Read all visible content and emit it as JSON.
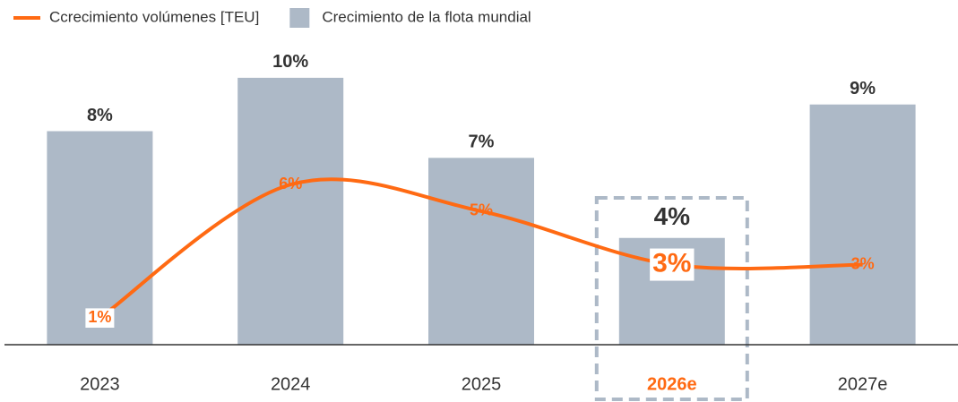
{
  "chart_data": {
    "type": "combo",
    "categories": [
      "2023",
      "2024",
      "2025",
      "2026e",
      "2027e"
    ],
    "series": [
      {
        "name": "Ccrecimiento volúmenes [TEU]",
        "type": "line",
        "color": "#ff6a13",
        "values": [
          1,
          6,
          5,
          3,
          3
        ],
        "value_labels": [
          "1%",
          "6%",
          "5%",
          "3%",
          "3%"
        ]
      },
      {
        "name": "Crecimiento de la flota mundial",
        "type": "bar",
        "color": "#adb9c7",
        "values": [
          8,
          10,
          7,
          4,
          9
        ],
        "value_labels": [
          "8%",
          "10%",
          "7%",
          "4%",
          "9%"
        ]
      }
    ],
    "ylim": [
      0,
      10.6
    ],
    "highlight": 3,
    "legend": "top-left"
  }
}
